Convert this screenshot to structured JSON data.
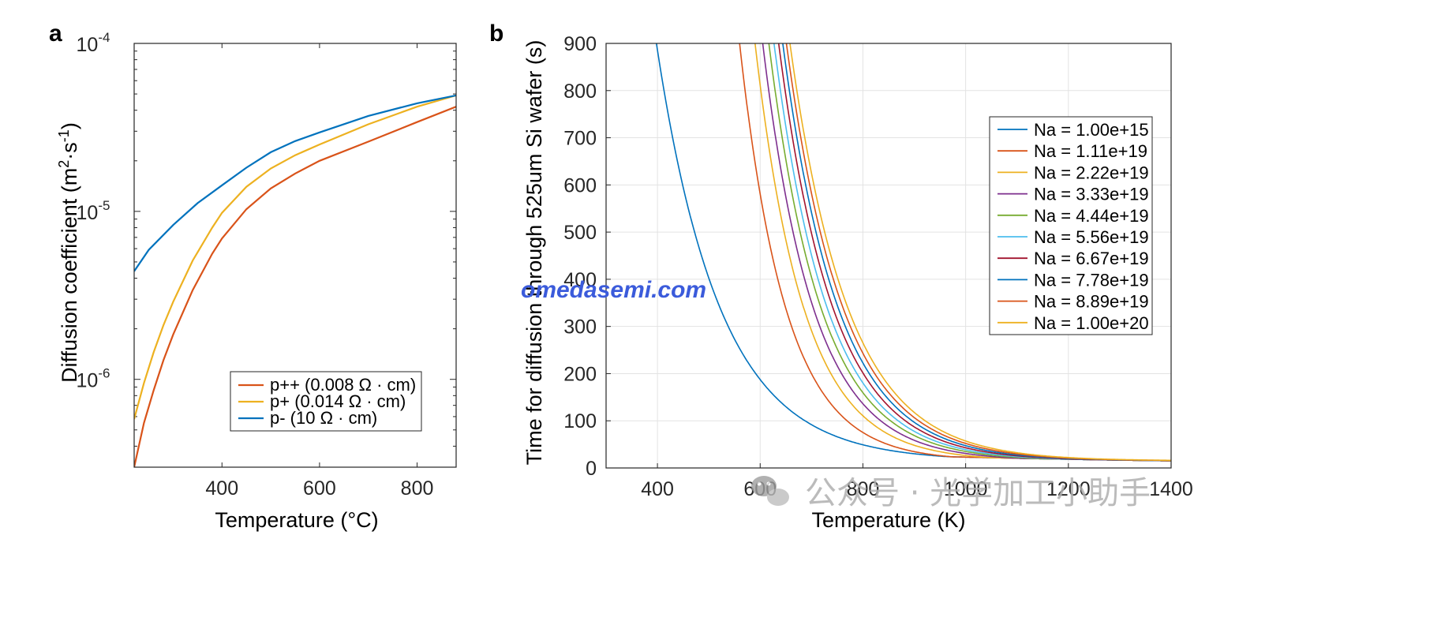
{
  "colors": [
    "#D95319",
    "#EDB120",
    "#0072BD",
    "#7E2F8E",
    "#77AC30",
    "#4DBEEE",
    "#A2142F"
  ],
  "chart_data": [
    {
      "panel": "a",
      "type": "line",
      "xlabel": "Temperature (°C)",
      "ylabel": "Diffusion coefficient (m²·s⁻¹)",
      "xlim": [
        220,
        880
      ],
      "ylim": [
        3e-07,
        0.0001
      ],
      "yscale": "log",
      "xticks": [
        "400",
        "600",
        "800"
      ],
      "yticks": [
        {
          "base": "10",
          "exp": "-4"
        },
        {
          "base": "10",
          "exp": "-5"
        },
        {
          "base": "10",
          "exp": "-6"
        }
      ],
      "grid": false,
      "legend": "bottom-right",
      "series": [
        {
          "name": "p++ (0.008 Ω · cm)",
          "color": "#D95319",
          "x": [
            220,
            240,
            260,
            280,
            300,
            340,
            380,
            400,
            450,
            500,
            550,
            600,
            700,
            800,
            880
          ],
          "y": [
            3e-07,
            5.5e-07,
            8.6e-07,
            1.3e-06,
            1.85e-06,
            3.4e-06,
            5.6e-06,
            6.9e-06,
            1.03e-05,
            1.37e-05,
            1.68e-05,
            2e-05,
            2.6e-05,
            3.4e-05,
            4.2e-05
          ]
        },
        {
          "name": "p+ (0.014 Ω · cm)",
          "color": "#EDB120",
          "x": [
            220,
            240,
            260,
            280,
            300,
            340,
            380,
            400,
            450,
            500,
            550,
            600,
            700,
            800,
            880
          ],
          "y": [
            5.8e-07,
            9.5e-07,
            1.45e-06,
            2.1e-06,
            2.9e-06,
            5.1e-06,
            8e-06,
            9.8e-06,
            1.4e-05,
            1.8e-05,
            2.16e-05,
            2.5e-05,
            3.3e-05,
            4.2e-05,
            4.9e-05
          ]
        },
        {
          "name": "p- (10 Ω · cm)",
          "color": "#0072BD",
          "x": [
            220,
            250,
            300,
            350,
            400,
            450,
            500,
            550,
            600,
            700,
            800,
            880
          ],
          "y": [
            4.4e-06,
            5.9e-06,
            8.3e-06,
            1.12e-05,
            1.43e-05,
            1.82e-05,
            2.25e-05,
            2.62e-05,
            2.95e-05,
            3.7e-05,
            4.4e-05,
            4.9e-05
          ]
        }
      ]
    },
    {
      "panel": "b",
      "type": "line",
      "xlabel": "Temperature (K)",
      "ylabel": "Time for diffusion through 525um Si wafer (s)",
      "xlim": [
        300,
        1400
      ],
      "ylim": [
        0,
        900
      ],
      "xticks": [
        "400",
        "600",
        "800",
        "1000",
        "1200",
        "1400"
      ],
      "yticks": [
        "0",
        "100",
        "200",
        "300",
        "400",
        "500",
        "600",
        "700",
        "800",
        "900"
      ],
      "grid": true,
      "legend": "top-right",
      "series": [
        {
          "name": "Na = 1.00e+15",
          "color": "#0072BD",
          "t0": 398,
          "k": 0.0081
        },
        {
          "name": "Na = 1.11e+19",
          "color": "#D95319",
          "t0": 560,
          "k": 0.0112
        },
        {
          "name": "Na = 2.22e+19",
          "color": "#EDB120",
          "t0": 590,
          "k": 0.0106
        },
        {
          "name": "Na = 3.33e+19",
          "color": "#7E2F8E",
          "t0": 605,
          "k": 0.0102
        },
        {
          "name": "Na = 4.44e+19",
          "color": "#77AC30",
          "t0": 617,
          "k": 0.0099
        },
        {
          "name": "Na = 5.56e+19",
          "color": "#4DBEEE",
          "t0": 627,
          "k": 0.0097
        },
        {
          "name": "Na = 6.67e+19",
          "color": "#A2142F",
          "t0": 636,
          "k": 0.0095
        },
        {
          "name": "Na = 7.78e+19",
          "color": "#0072BD",
          "t0": 644,
          "k": 0.0093
        },
        {
          "name": "Na = 8.89e+19",
          "color": "#D95319",
          "t0": 651,
          "k": 0.0091
        },
        {
          "name": "Na = 1.00e+20",
          "color": "#EDB120",
          "t0": 658,
          "k": 0.0089
        }
      ]
    }
  ],
  "watermarks": {
    "site": "omedasemi.com",
    "account": "公众号 · 光学加工小助手"
  }
}
